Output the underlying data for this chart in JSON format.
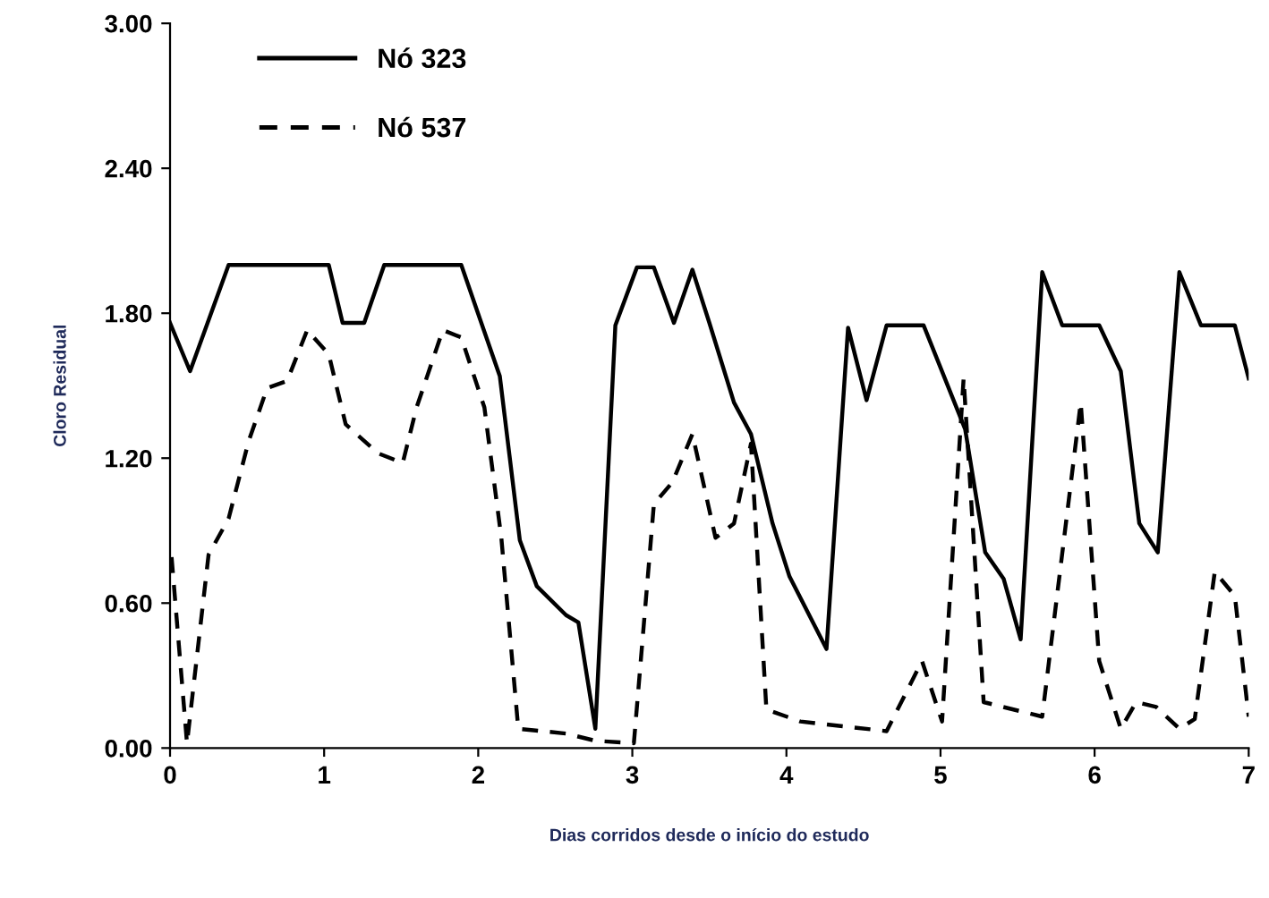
{
  "chart_data": {
    "type": "line",
    "xlabel": "Dias corridos desde o início do estudo",
    "ylabel": "Cloro Residual",
    "xlim": [
      0,
      7
    ],
    "xticks": [
      0,
      1,
      2,
      3,
      4,
      5,
      6,
      7
    ],
    "ylim": [
      0,
      3
    ],
    "yticks": [
      {
        "value": 0,
        "label": "0.00"
      },
      {
        "value": 0.6,
        "label": "0.60"
      },
      {
        "value": 1.2,
        "label": "1.20"
      },
      {
        "value": 1.8,
        "label": "1.80"
      },
      {
        "value": 2.4,
        "label": "2.40"
      },
      {
        "value": 3,
        "label": "3.00"
      }
    ],
    "grid": false,
    "legend": "top left",
    "marker": "none",
    "series": [
      {
        "name": "Nó 323",
        "color": "#000000",
        "line_style": "solid",
        "x": [
          0,
          0.13,
          0.38,
          1.03,
          1.12,
          1.26,
          1.39,
          1.89,
          2.02,
          2.14,
          2.27,
          2.38,
          2.57,
          2.65,
          2.76,
          2.89,
          3.03,
          3.14,
          3.27,
          3.39,
          3.5,
          3.66,
          3.77,
          3.91,
          4.02,
          4.26,
          4.4,
          4.52,
          4.65,
          4.89,
          5.16,
          5.29,
          5.41,
          5.52,
          5.66,
          5.79,
          6.03,
          6.17,
          6.29,
          6.41,
          6.55,
          6.69,
          6.91,
          7.0
        ],
        "values": [
          1.76,
          1.56,
          2.0,
          2.0,
          1.76,
          1.76,
          2.0,
          2.0,
          1.76,
          1.54,
          0.86,
          0.67,
          0.55,
          0.52,
          0.08,
          1.75,
          1.99,
          1.99,
          1.76,
          1.98,
          1.76,
          1.43,
          1.3,
          0.93,
          0.71,
          0.41,
          1.74,
          1.44,
          1.75,
          1.75,
          1.32,
          0.81,
          0.7,
          0.45,
          1.97,
          1.75,
          1.75,
          1.56,
          0.93,
          0.81,
          1.97,
          1.75,
          1.75,
          1.53
        ]
      },
      {
        "name": "Nó 537",
        "color": "#000000",
        "line_style": "dashed",
        "x": [
          0.01,
          0.11,
          0.25,
          0.38,
          0.51,
          0.63,
          0.76,
          0.89,
          1.03,
          1.14,
          1.35,
          1.51,
          1.6,
          1.77,
          1.89,
          2.04,
          2.15,
          2.26,
          2.57,
          2.76,
          3.01,
          3.14,
          3.26,
          3.39,
          3.54,
          3.66,
          3.77,
          3.87,
          4.09,
          4.65,
          4.88,
          5.01,
          5.15,
          5.28,
          5.66,
          5.91,
          6.03,
          6.17,
          6.27,
          6.4,
          6.55,
          6.65,
          6.78,
          6.91,
          7.0
        ],
        "values": [
          0.79,
          0.02,
          0.8,
          0.95,
          1.27,
          1.49,
          1.52,
          1.73,
          1.63,
          1.34,
          1.22,
          1.18,
          1.41,
          1.73,
          1.7,
          1.41,
          0.87,
          0.08,
          0.06,
          0.03,
          0.02,
          1.01,
          1.1,
          1.3,
          0.87,
          0.93,
          1.26,
          0.16,
          0.11,
          0.07,
          0.36,
          0.11,
          1.53,
          0.19,
          0.13,
          1.43,
          0.36,
          0.08,
          0.19,
          0.17,
          0.08,
          0.12,
          0.73,
          0.63,
          0.13
        ]
      }
    ]
  }
}
